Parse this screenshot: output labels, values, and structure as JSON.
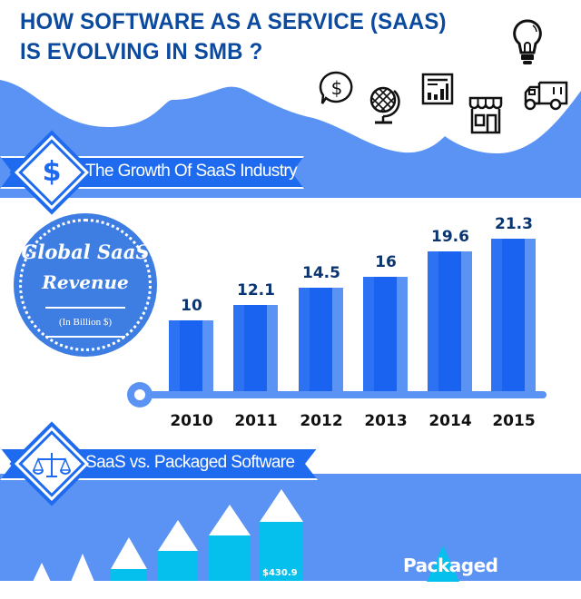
{
  "header": {
    "title_line1": "HOW SOFTWARE AS A SERVICE (SAAS)",
    "title_line2": "IS EVOLVING IN SMB ?",
    "icons": [
      "dollar-speech-bubble-icon",
      "globe-icon",
      "bar-chart-report-icon",
      "storefront-icon",
      "delivery-truck-icon",
      "lightbulb-icon"
    ]
  },
  "section1": {
    "ribbon_label": "The Growth Of SaaS Industry",
    "ribbon_icon": "dollar-sign-icon"
  },
  "badge": {
    "line1": "Global SaaS",
    "line2": "Revenue",
    "line3": "(In Billion $)"
  },
  "chart_data": [
    {
      "type": "bar",
      "title": "Global SaaS Revenue",
      "subtitle": "(In Billion $)",
      "categories": [
        "2010",
        "2011",
        "2012",
        "2013",
        "2014",
        "2015"
      ],
      "values": [
        10,
        12.1,
        14.5,
        16,
        19.6,
        21.3
      ],
      "value_labels": [
        "10",
        "12.1",
        "14.5",
        "16",
        "19.6",
        "21.3"
      ],
      "xlabel": "",
      "ylabel": "Revenue (In Billion $)",
      "grid": false,
      "colors": {
        "bar": "#1a63f0",
        "axis": "#5b93f4",
        "label": "#0b3570"
      }
    },
    {
      "type": "bar",
      "title": "SaaS vs. Packaged Software",
      "series": [
        {
          "name": "SaaS",
          "values": [
            null,
            null,
            null,
            null,
            null,
            430.9
          ]
        },
        {
          "name": "Packaged",
          "values": []
        }
      ],
      "visible_labels": [
        "$430.9",
        "Packaged"
      ]
    }
  ],
  "section2": {
    "ribbon_label": "SaaS vs. Packaged Software",
    "ribbon_icon": "scales-icon",
    "value_label": "$430.9",
    "packaged_label": "Packaged"
  },
  "colors": {
    "title": "#0b4a9e",
    "band": "#5b93f4",
    "ribbon": "#1e6bf0",
    "bar": "#1a63f0",
    "pencil": "#05c0ec"
  }
}
